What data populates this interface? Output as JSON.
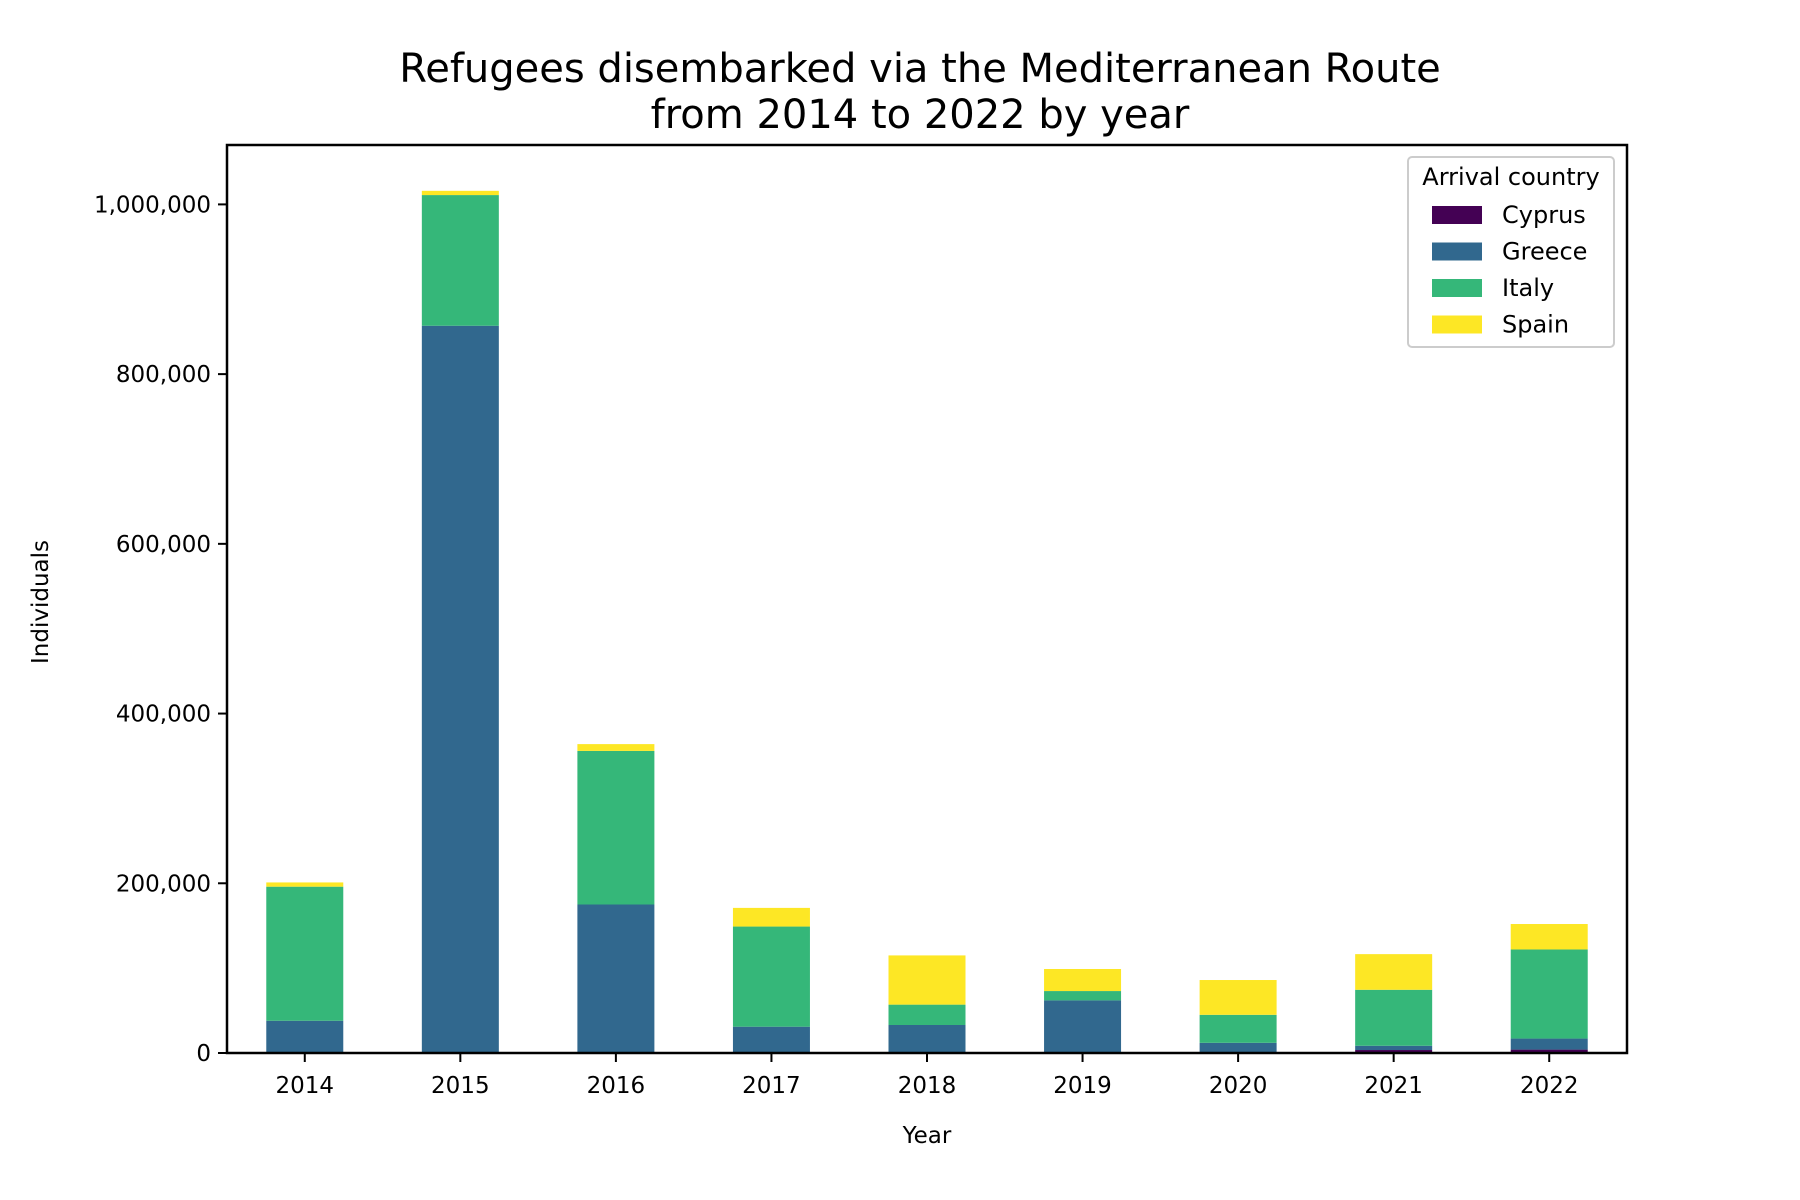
{
  "chart_data": {
    "type": "bar",
    "stacked": true,
    "title_lines": [
      "Refugees disembarked via the Mediterranean Route",
      "from 2014 to 2022 by year"
    ],
    "xlabel": "Year",
    "ylabel": "Individuals",
    "categories": [
      "2014",
      "2015",
      "2016",
      "2017",
      "2018",
      "2019",
      "2020",
      "2021",
      "2022"
    ],
    "ylim": [
      0,
      1070000
    ],
    "yticks": [
      0,
      200000,
      400000,
      600000,
      800000,
      1000000
    ],
    "ytick_labels": [
      "0",
      "200,000",
      "400,000",
      "600,000",
      "800,000",
      "1,000,000"
    ],
    "grid": false,
    "legend": {
      "title": "Arrival country",
      "placement": "top-right"
    },
    "series": [
      {
        "name": "Cyprus",
        "color": "#440154",
        "values": [
          0,
          0,
          0,
          0,
          0,
          0,
          0,
          3500,
          4000
        ]
      },
      {
        "name": "Greece",
        "color": "#31688e",
        "values": [
          38000,
          857000,
          175000,
          31000,
          33000,
          62000,
          12000,
          5000,
          13000
        ]
      },
      {
        "name": "Italy",
        "color": "#35b779",
        "values": [
          158000,
          154000,
          181000,
          118000,
          24000,
          11000,
          33000,
          66000,
          105000
        ]
      },
      {
        "name": "Spain",
        "color": "#fde725",
        "values": [
          5000,
          5000,
          8000,
          22000,
          58000,
          26000,
          41000,
          42000,
          30000
        ]
      }
    ]
  }
}
